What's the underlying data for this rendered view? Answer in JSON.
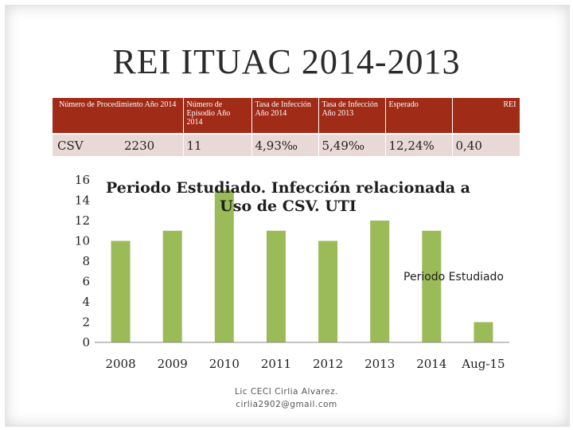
{
  "slide": {
    "title": "REI ITUAC 2014-2013",
    "footer_line1": "Lic CECI Cirlia Alvarez.",
    "footer_line2": "cirlia2902@gmail.com"
  },
  "table": {
    "headers": [
      "Número de Procedimiento Año 2014",
      "Número de Episodio Año 2014",
      "Tasa de Infección Año 2014",
      "Tasa de Infección Año 2013",
      "Esperado",
      "REI"
    ],
    "row": {
      "label": "CSV",
      "procedures": "2230",
      "episodes": "11",
      "rate_2014": "4,93‰",
      "rate_2013": "5,49‰",
      "expected": "12,24%",
      "rei": "0,40"
    }
  },
  "colors": {
    "header_bg": "#a02b17",
    "cell_bg": "#e9d9d6",
    "bar": "#9bbb59"
  },
  "chart_data": {
    "type": "bar",
    "title_line1": "Periodo Estudiado. Infección relacionada a",
    "title_line2": "Uso de CSV. UTI",
    "categories": [
      "2008",
      "2009",
      "2010",
      "2011",
      "2012",
      "2013",
      "2014",
      "Aug-15"
    ],
    "series": [
      {
        "name": "Periodo Estudiado",
        "values": [
          10,
          11,
          15,
          11,
          10,
          12,
          11,
          2
        ]
      }
    ],
    "yticks": [
      "0",
      "2",
      "4",
      "6",
      "8",
      "10",
      "12",
      "14",
      "16"
    ],
    "ylim": [
      0,
      16
    ],
    "legend_position": "right",
    "grid": false
  }
}
